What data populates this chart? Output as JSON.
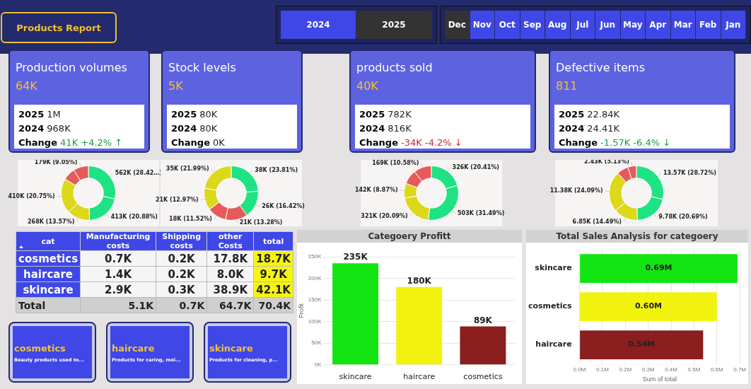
{
  "chart_data": [
    {
      "type": "other",
      "title": "Products Report",
      "annotations": [
        "2024",
        "2025",
        "Dec",
        "Nov",
        "Oct",
        "Sep",
        "Aug",
        "Jul",
        "Jun",
        "May",
        "Apr",
        "Mar",
        "Feb",
        "Jan"
      ]
    },
    {
      "type": "other",
      "title": "Production volumes",
      "subtitle": "64K",
      "annotations": [
        "2025 1M",
        "2024 968K",
        "Change 41K +4.2% ↑"
      ],
      "color": "#1a9e3a"
    },
    {
      "type": "other",
      "title": "Stock levels",
      "subtitle": "5K",
      "annotations": [
        "2025 80K",
        "2024 80K",
        "Change 0K"
      ]
    },
    {
      "type": "other",
      "title": "products sold",
      "subtitle": "40K",
      "annotations": [
        "2025 782K",
        "2024 816K",
        "Change -34K -4.2% ↓"
      ],
      "color": "#c42a2a"
    },
    {
      "type": "other",
      "title": "Defective items",
      "subtitle": "811",
      "annotations": [
        "2025 22.84K",
        "2024 24.41K",
        "Change -1.57K -6.4% ↓"
      ],
      "color": "#1a9e3a"
    },
    {
      "type": "donut",
      "categories": [
        null,
        null,
        null,
        null,
        null,
        null
      ],
      "values": [
        562000,
        413000,
        268000,
        410000,
        145000,
        179000
      ],
      "colors": [
        "#1ee383",
        "#1ee383",
        "#dcd81a",
        "#dcd81a",
        "#e85a5a",
        "#e85a5a"
      ],
      "value_labels": [
        "562K (28.42…)",
        "413K (20.88%)",
        "268K (13.57%)",
        "410K (20.75%)",
        null,
        "179K (9.05%)"
      ]
    },
    {
      "type": "donut",
      "categories": [
        null,
        null,
        null,
        null,
        null,
        null
      ],
      "values": [
        38000,
        26000,
        21000,
        18000,
        21000,
        35000
      ],
      "colors": [
        "#1ee383",
        "#1ee383",
        "#e85a5a",
        "#e85a5a",
        "#dcd81a",
        "#dcd81a"
      ],
      "value_labels": [
        "38K (23.81%)",
        "26K (16.42%)",
        "21K (13.28%)",
        "18K (11.52%)",
        "21K (12.97%)",
        "35K (21.99%)"
      ]
    },
    {
      "type": "donut",
      "categories": [
        null,
        null,
        null,
        null,
        null,
        null
      ],
      "values": [
        326000,
        503000,
        321000,
        142000,
        137000,
        169000
      ],
      "colors": [
        "#1ee383",
        "#1ee383",
        "#dcd81a",
        "#dcd81a",
        "#e85a5a",
        "#e85a5a"
      ],
      "value_labels": [
        "326K (20.41%)",
        "503K (31.49%)",
        "321K (20.09%)",
        "142K (8.87%)",
        null,
        "169K (10.58%)"
      ]
    },
    {
      "type": "donut",
      "categories": [
        null,
        null,
        null,
        null,
        null,
        null
      ],
      "values": [
        13570,
        9780,
        6850,
        11380,
        3250,
        2430
      ],
      "colors": [
        "#1ee383",
        "#1ee383",
        "#dcd81a",
        "#dcd81a",
        "#e85a5a",
        "#e85a5a"
      ],
      "value_labels": [
        "13.57K (28.72%)",
        "9.78K (20.69%)",
        "6.85K (14.49%)",
        "11.38K (24.09%)",
        null,
        "2.43K (5.13%)"
      ]
    },
    {
      "type": "other",
      "categories": [
        "cat",
        "Manufacturing costs",
        "Shipping costs",
        "other Costs",
        "total"
      ],
      "annotations": [
        "cosmetics",
        "0.7K",
        "0.2K",
        "17.8K",
        "18.7K",
        "haircare",
        "1.4K",
        "0.2K",
        "8.0K",
        "9.7K",
        "skincare",
        "2.9K",
        "0.3K",
        "38.9K",
        "42.1K",
        "Total",
        "5.1K",
        "0.7K",
        "64.7K",
        "70.4K"
      ]
    },
    {
      "type": "bar",
      "title": "Categoery Profitt",
      "ylabel": "Profit",
      "categories": [
        "skincare",
        "haircare",
        "cosmetics"
      ],
      "values": [
        235,
        180,
        89
      ],
      "colors": [
        "#12e512",
        "#f2f20f",
        "#8b1e1e"
      ],
      "value_labels": [
        "235K",
        "180K",
        "89K"
      ],
      "ylim": [
        0,
        250
      ],
      "yticks": [
        {
          "value": 0,
          "label": "0K"
        },
        {
          "value": 50,
          "label": "50K"
        },
        {
          "value": 100,
          "label": "100K"
        },
        {
          "value": 150,
          "label": "150K"
        },
        {
          "value": 200,
          "label": "200K"
        },
        {
          "value": 250,
          "label": "250K"
        }
      ],
      "grid": "y"
    },
    {
      "type": "bar",
      "orientation": "horizontal",
      "title": "Total Sales Analysis for categoery",
      "xlabel": "Sum of total",
      "categories": [
        "skincare",
        "cosmetics",
        "haircare"
      ],
      "values": [
        0.69,
        0.6,
        0.54
      ],
      "colors": [
        "#12e512",
        "#f2f20f",
        "#8b1e1e"
      ],
      "value_labels": [
        "0.69M",
        "0.60M",
        "0.54M"
      ],
      "xlim": [
        0,
        0.7
      ],
      "xticks": [
        {
          "value": 0,
          "label": "0.0M"
        },
        {
          "value": 0.1,
          "label": "0.1M"
        },
        {
          "value": 0.2,
          "label": "0.2M"
        },
        {
          "value": 0.3,
          "label": "0.3M"
        },
        {
          "value": 0.4,
          "label": "0.4M"
        },
        {
          "value": 0.5,
          "label": "0.5M"
        },
        {
          "value": 0.6,
          "label": "0.6M"
        },
        {
          "value": 0.7,
          "label": "0.7M"
        }
      ],
      "grid": "x"
    },
    {
      "type": "other",
      "title": "cosmetics",
      "subtitle": "Beauty products used to..."
    },
    {
      "type": "other",
      "title": "haircare",
      "subtitle": "Products for caring, moi..."
    },
    {
      "type": "other",
      "title": "skincare",
      "subtitle": "Products for cleaning, p..."
    }
  ]
}
